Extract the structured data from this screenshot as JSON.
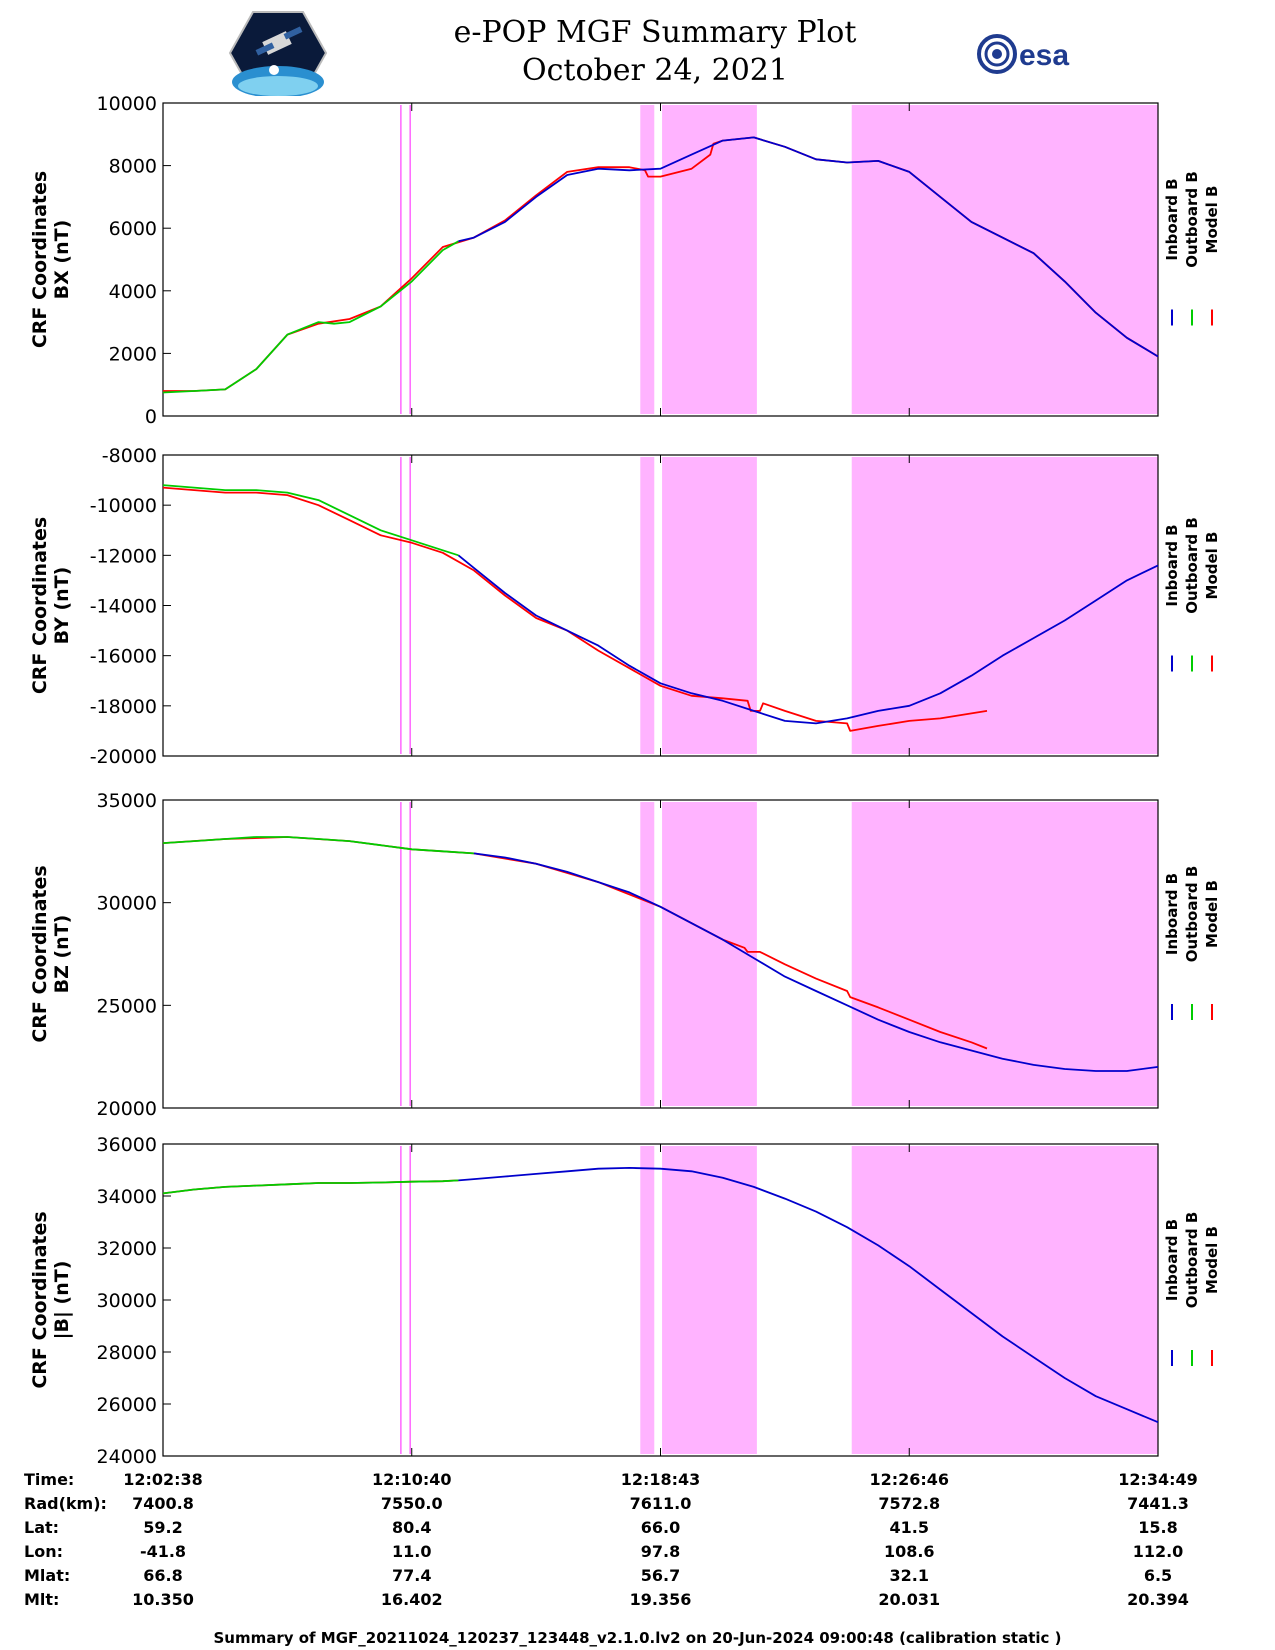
{
  "header": {
    "title_line1": "e-POP MGF Summary Plot",
    "title_line2": "October 24, 2021",
    "logo_left": "cassiope-mission-logo",
    "logo_right_text": "esa"
  },
  "colors": {
    "inboard": "#0000cc",
    "outboard": "#00cc00",
    "model": "#ff0000",
    "shading": "#ffb3ff",
    "shading_line": "#ff66ff"
  },
  "chart_data": [
    {
      "type": "line",
      "ylabel": [
        "CRF Coordinates",
        "BX (nT)"
      ],
      "ylim": [
        0,
        10000
      ],
      "yticks": [
        0,
        2000,
        4000,
        6000,
        8000,
        10000
      ],
      "legend": [
        "Inboard B",
        "Outboard B",
        "Model B"
      ],
      "legend_placement": "right",
      "series": [
        {
          "name": "Inboard B",
          "x": [
            9.5,
            10,
            11,
            12,
            13,
            14,
            15,
            16,
            17,
            18,
            19,
            20,
            21,
            22,
            23,
            24,
            25,
            26,
            27,
            28,
            29,
            30,
            31,
            32
          ],
          "y": [
            5580,
            5700,
            6200,
            7000,
            7700,
            7900,
            7850,
            7900,
            8350,
            8800,
            8900,
            8600,
            8200,
            8100,
            8150,
            7800,
            7000,
            6200,
            5700,
            5200,
            4300,
            3300,
            2500,
            1900
          ]
        },
        {
          "name": "Outboard B",
          "x": [
            0,
            1,
            2,
            3,
            4,
            5,
            5.5,
            6,
            7,
            8,
            9,
            9.5
          ],
          "y": [
            750,
            800,
            850,
            1500,
            2600,
            3000,
            2950,
            3000,
            3500,
            4300,
            5300,
            5580
          ]
        },
        {
          "name": "Model B",
          "x": [
            0,
            1,
            2,
            3,
            4,
            5,
            6,
            7,
            8,
            9,
            10,
            11,
            12,
            13,
            14,
            15,
            15.5,
            15.6,
            16,
            17,
            17.6,
            17.7,
            18,
            19,
            20,
            21,
            22,
            23,
            24,
            25,
            26,
            27,
            28,
            29,
            30,
            31,
            32
          ],
          "y": [
            800,
            800,
            850,
            1500,
            2600,
            2950,
            3100,
            3500,
            4400,
            5400,
            5700,
            6250,
            7050,
            7800,
            7950,
            7950,
            7850,
            7650,
            7650,
            7900,
            8350,
            8700,
            8800,
            8900,
            8600,
            8200,
            8100,
            8150,
            7800,
            7000,
            6200,
            5700,
            5200,
            4300,
            3300,
            2500,
            1900
          ]
        }
      ]
    },
    {
      "type": "line",
      "ylabel": [
        "CRF Coordinates",
        "BY (nT)"
      ],
      "ylim": [
        -20000,
        -8000
      ],
      "yticks": [
        -20000,
        -18000,
        -16000,
        -14000,
        -12000,
        -10000,
        -8000
      ],
      "legend": [
        "Inboard B",
        "Outboard B",
        "Model B"
      ],
      "legend_placement": "right",
      "series": [
        {
          "name": "Inboard B",
          "x": [
            9.5,
            10,
            11,
            12,
            13,
            14,
            15,
            16,
            17,
            18,
            19,
            20,
            21,
            22,
            23,
            24,
            25,
            26,
            27,
            28,
            29,
            30,
            31,
            32
          ],
          "y": [
            -12000,
            -12500,
            -13500,
            -14400,
            -15000,
            -15600,
            -16400,
            -17100,
            -17500,
            -17800,
            -18200,
            -18600,
            -18700,
            -18500,
            -18200,
            -18000,
            -17500,
            -16800,
            -16000,
            -15300,
            -14600,
            -13800,
            -13000,
            -12400
          ]
        },
        {
          "name": "Outboard B",
          "x": [
            0,
            1,
            2,
            3,
            4,
            5,
            6,
            7,
            8,
            9,
            9.5
          ],
          "y": [
            -9200,
            -9300,
            -9400,
            -9400,
            -9500,
            -9800,
            -10400,
            -11000,
            -11400,
            -11800,
            -12000
          ]
        },
        {
          "name": "Model B",
          "x": [
            0,
            1,
            2,
            3,
            4,
            5,
            6,
            7,
            8,
            9,
            10,
            11,
            12,
            13,
            14,
            15,
            16,
            17,
            18,
            18.8,
            18.9,
            19.2,
            19.3,
            20,
            21,
            22,
            22.1,
            23,
            24,
            25,
            26,
            26.5
          ],
          "y": [
            -9300,
            -9400,
            -9500,
            -9500,
            -9600,
            -10000,
            -10600,
            -11200,
            -11500,
            -11900,
            -12600,
            -13600,
            -14500,
            -15000,
            -15800,
            -16500,
            -17200,
            -17600,
            -17700,
            -17800,
            -18200,
            -18200,
            -17900,
            -18200,
            -18600,
            -18700,
            -19000,
            -18800,
            -18600,
            -18500,
            -18300,
            -18200
          ]
        }
      ]
    },
    {
      "type": "line",
      "ylabel": [
        "CRF Coordinates",
        "BZ (nT)"
      ],
      "ylim": [
        20000,
        35000
      ],
      "yticks": [
        20000,
        25000,
        30000,
        35000
      ],
      "legend": [
        "Inboard B",
        "Outboard B",
        "Model B"
      ],
      "legend_placement": "right",
      "series": [
        {
          "name": "Inboard B",
          "x": [
            10,
            11,
            12,
            13,
            14,
            15,
            16,
            17,
            18,
            19,
            20,
            21,
            22,
            23,
            24,
            25,
            26,
            27,
            28,
            29,
            30,
            31,
            32
          ],
          "y": [
            32400,
            32200,
            31900,
            31500,
            31000,
            30500,
            29800,
            29000,
            28200,
            27300,
            26400,
            25700,
            25000,
            24300,
            23700,
            23200,
            22800,
            22400,
            22100,
            21900,
            21800,
            21800,
            22000
          ]
        },
        {
          "name": "Outboard B",
          "x": [
            0,
            1,
            2,
            3,
            4,
            5,
            6,
            7,
            8,
            9,
            10
          ],
          "y": [
            32900,
            33000,
            33100,
            33200,
            33200,
            33100,
            33000,
            32800,
            32600,
            32500,
            32400
          ]
        },
        {
          "name": "Model B",
          "x": [
            0,
            2,
            4,
            6,
            8,
            10,
            12,
            14,
            16,
            18,
            18.7,
            18.8,
            19.2,
            20,
            21,
            22,
            22.1,
            23,
            24,
            25,
            26,
            26.5
          ],
          "y": [
            32900,
            33100,
            33200,
            33000,
            32600,
            32400,
            31900,
            31000,
            29800,
            28200,
            27800,
            27600,
            27600,
            27000,
            26300,
            25700,
            25400,
            24900,
            24300,
            23700,
            23200,
            22900
          ]
        }
      ]
    },
    {
      "type": "line",
      "ylabel": [
        "CRF Coordinates",
        "|B| (nT)"
      ],
      "ylim": [
        24000,
        36000
      ],
      "yticks": [
        24000,
        26000,
        28000,
        30000,
        32000,
        34000,
        36000
      ],
      "legend": [
        "Inboard B",
        "Outboard B",
        "Model B"
      ],
      "legend_placement": "right",
      "series": [
        {
          "name": "Inboard B",
          "x": [
            9.5,
            10,
            11,
            12,
            13,
            14,
            15,
            16,
            17,
            18,
            19,
            20,
            21,
            22,
            23,
            24,
            25,
            26,
            27,
            28,
            29,
            30,
            31,
            32
          ],
          "y": [
            34600,
            34650,
            34750,
            34850,
            34950,
            35050,
            35080,
            35050,
            34950,
            34700,
            34350,
            33900,
            33400,
            32800,
            32100,
            31300,
            30400,
            29500,
            28600,
            27800,
            27000,
            26300,
            25800,
            25300
          ]
        },
        {
          "name": "Outboard B",
          "x": [
            0,
            1,
            2,
            3,
            4,
            5,
            6,
            7,
            8,
            9,
            9.5
          ],
          "y": [
            34100,
            34250,
            34350,
            34400,
            34450,
            34500,
            34500,
            34520,
            34550,
            34570,
            34600
          ]
        },
        {
          "name": "Model B",
          "x": [
            0,
            1,
            2,
            3,
            4,
            5,
            6,
            7,
            8,
            9,
            9.5
          ],
          "y": [
            34100,
            34250,
            34350,
            34400,
            34450,
            34500,
            34500,
            34520,
            34550,
            34570,
            34600
          ]
        }
      ]
    }
  ],
  "x_axis": {
    "xlim": [
      0,
      32
    ],
    "ticks": [
      0,
      8,
      16,
      24,
      32
    ],
    "shaded_intervals": [
      [
        7.65,
        7.95
      ],
      [
        15.35,
        15.8
      ],
      [
        16.05,
        19.1
      ],
      [
        22.15,
        32
      ]
    ]
  },
  "info_table": {
    "labels": [
      "Time:",
      "Rad(km):",
      "Lat:",
      "Lon:",
      "Mlat:",
      "Mlt:"
    ],
    "columns": [
      [
        "12:02:38",
        "7400.8",
        "59.2",
        "-41.8",
        "66.8",
        "10.350"
      ],
      [
        "12:10:40",
        "7550.0",
        "80.4",
        "11.0",
        "77.4",
        "16.402"
      ],
      [
        "12:18:43",
        "7611.0",
        "66.0",
        "97.8",
        "56.7",
        "19.356"
      ],
      [
        "12:26:46",
        "7572.8",
        "41.5",
        "108.6",
        "32.1",
        "20.031"
      ],
      [
        "12:34:49",
        "7441.3",
        "15.8",
        "112.0",
        "6.5",
        "20.394"
      ]
    ]
  },
  "footer": "Summary of MGF_20211024_120237_123448_v2.1.0.lv2 on 20-Jun-2024 09:00:48 (calibration static )"
}
